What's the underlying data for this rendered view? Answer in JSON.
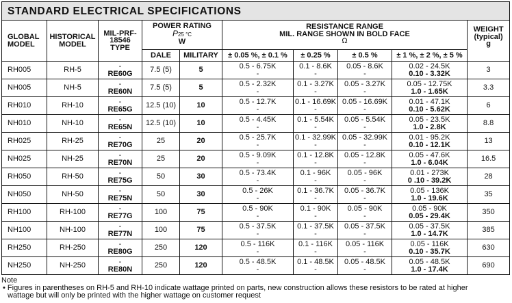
{
  "title": "STANDARD ELECTRICAL SPECIFICATIONS",
  "headers": {
    "global_model": [
      "GLOBAL",
      "MODEL"
    ],
    "historical_model": [
      "HISTORICAL",
      "MODEL"
    ],
    "mil_type": [
      "MIL-PRF-",
      "18546",
      "TYPE"
    ],
    "power_rating": [
      "POWER RATING",
      "P",
      "25 °C",
      "W"
    ],
    "dale": "DALE",
    "military": "MILITARY",
    "resistance": [
      "RESISTANCE RANGE",
      "MIL. RANGE SHOWN IN BOLD FACE",
      "Ω"
    ],
    "tol_005_01": "± 0.05 %, ± 0.1 %",
    "tol_025": "± 0.25 %",
    "tol_05": "± 0.5 %",
    "tol_1_2_5": "± 1 %, ± 2 %, ± 5 %",
    "weight": [
      "WEIGHT",
      "(typical)",
      "g"
    ]
  },
  "rows": [
    {
      "global": "RH005",
      "hist": "RH-5",
      "mil": "RE60G",
      "dale": "7.5 (5)",
      "military": "5",
      "r1": "0.5 - 6.75K",
      "r2": "0.1 - 8.6K",
      "r3": "0.05 - 8.6K",
      "r4": "0.02 - 24.5K",
      "r4mil": "0.10 - 3.32K",
      "weight": "3"
    },
    {
      "global": "NH005",
      "hist": "NH-5",
      "mil": "RE60N",
      "dale": "7.5 (5)",
      "military": "5",
      "r1": "0.5 - 2.32K",
      "r2": "0.1 - 3.27K",
      "r3": "0.05 - 3.27K",
      "r4": "0.05 - 12.75K",
      "r4mil": "1.0 - 1.65K",
      "weight": "3.3"
    },
    {
      "global": "RH010",
      "hist": "RH-10",
      "mil": "RE65G",
      "dale": "12.5 (10)",
      "military": "10",
      "r1": "0.5 - 12.7K",
      "r2": "0.1 - 16.69K",
      "r3": "0.05 - 16.69K",
      "r4": "0.01 - 47.1K",
      "r4mil": "0.10 - 5.62K",
      "weight": "6"
    },
    {
      "global": "NH010",
      "hist": "NH-10",
      "mil": "RE65N",
      "dale": "12.5 (10)",
      "military": "10",
      "r1": "0.5 - 4.45K",
      "r2": "0.1 - 5.54K",
      "r3": "0.05 - 5.54K",
      "r4": "0.05 - 23.5K",
      "r4mil": "1.0 - 2.8K",
      "weight": "8.8"
    },
    {
      "global": "RH025",
      "hist": "RH-25",
      "mil": "RE70G",
      "dale": "25",
      "military": "20",
      "r1": "0.5 - 25.7K",
      "r2": "0.1 - 32.99K",
      "r3": "0.05 - 32.99K",
      "r4": "0.01 - 95.2K",
      "r4mil": "0.10 - 12.1K",
      "weight": "13"
    },
    {
      "global": "NH025",
      "hist": "NH-25",
      "mil": "RE70N",
      "dale": "25",
      "military": "20",
      "r1": "0.5 - 9.09K",
      "r2": "0.1 - 12.8K",
      "r3": "0.05 - 12.8K",
      "r4": "0.05 - 47.6K",
      "r4mil": "1.0 - 6.04K",
      "weight": "16.5"
    },
    {
      "global": "RH050",
      "hist": "RH-50",
      "mil": "RE75G",
      "dale": "50",
      "military": "30",
      "r1": "0.5 - 73.4K",
      "r2": "0.1 - 96K",
      "r3": "0.05 - 96K",
      "r4": "0.01 - 273K",
      "r4mil": "0 .10 - 39.2K",
      "weight": "28"
    },
    {
      "global": "NH050",
      "hist": "NH-50",
      "mil": "RE75N",
      "dale": "50",
      "military": "30",
      "r1": "0.5 - 26K",
      "r2": "0.1 - 36.7K",
      "r3": "0.05 - 36.7K",
      "r4": "0.05 - 136K",
      "r4mil": "1.0 - 19.6K",
      "weight": "35"
    },
    {
      "global": "RH100",
      "hist": "RH-100",
      "mil": "RE77G",
      "dale": "100",
      "military": "75",
      "r1": "0.5 - 90K",
      "r2": "0.1 - 90K",
      "r3": "0.05 - 90K",
      "r4": "0.05 - 90K",
      "r4mil": "0.05 - 29.4K",
      "weight": "350"
    },
    {
      "global": "NH100",
      "hist": "NH-100",
      "mil": "RE77N",
      "dale": "100",
      "military": "75",
      "r1": "0.5 - 37.5K",
      "r2": "0.1 - 37.5K",
      "r3": "0.05 - 37.5K",
      "r4": "0.05 - 37.5K",
      "r4mil": "1.0 - 14.7K",
      "weight": "385"
    },
    {
      "global": "RH250",
      "hist": "RH-250",
      "mil": "RE80G",
      "dale": "250",
      "military": "120",
      "r1": "0.5 - 116K",
      "r2": "0.1 - 116K",
      "r3": "0.05 - 116K",
      "r4": "0.05 - 116K",
      "r4mil": "0.10 - 35.7K",
      "weight": "630"
    },
    {
      "global": "NH250",
      "hist": "NH-250",
      "mil": "RE80N",
      "dale": "250",
      "military": "120",
      "r1": "0.5 - 48.5K",
      "r2": "0.1 - 48.5K",
      "r3": "0.05 - 48.5K",
      "r4": "0.05 - 48.5K",
      "r4mil": "1.0 - 17.4K",
      "weight": "690"
    }
  ],
  "dash": "-",
  "note": {
    "label": "Note",
    "bullet": "•",
    "line1": "Figures in parentheses on RH-5 and RH-10 indicate wattage printed on parts, new construction allows these resistors to be rated at higher",
    "line2": "wattage but will only be printed with the higher wattage on customer request"
  }
}
